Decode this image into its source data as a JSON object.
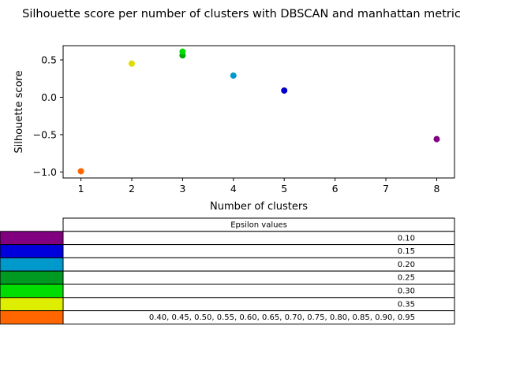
{
  "chart_data": {
    "type": "scatter",
    "title": "Silhouette score per number of clusters with DBSCAN and manhattan metric",
    "xlabel": "Number of clusters",
    "ylabel": "Silhouette score",
    "xlim": [
      0.65,
      8.35
    ],
    "ylim": [
      -1.08,
      0.69
    ],
    "xticks": [
      1,
      2,
      3,
      4,
      5,
      6,
      7,
      8
    ],
    "yticks": [
      0.5,
      0.0,
      -0.5,
      -1.0
    ],
    "xtick_labels": [
      "1",
      "2",
      "3",
      "4",
      "5",
      "6",
      "7",
      "8"
    ],
    "ytick_labels": [
      "0.5",
      "0.0",
      "−0.5",
      "−1.0"
    ],
    "grid": false,
    "points": [
      {
        "x": 8,
        "y": -0.56,
        "color": "#800080"
      },
      {
        "x": 5,
        "y": 0.09,
        "color": "#0000cc"
      },
      {
        "x": 4,
        "y": 0.29,
        "color": "#0099cc"
      },
      {
        "x": 3,
        "y": 0.56,
        "color": "#00aa00"
      },
      {
        "x": 3,
        "y": 0.61,
        "color": "#00dd00"
      },
      {
        "x": 2,
        "y": 0.45,
        "color": "#dddd00"
      },
      {
        "x": 1,
        "y": -0.99,
        "color": "#ff6600"
      }
    ],
    "table": {
      "header": "Epsilon values",
      "rows": [
        {
          "color": "#800080",
          "value": "0.10"
        },
        {
          "color": "#0000dd",
          "value": "0.15"
        },
        {
          "color": "#0099cc",
          "value": "0.20"
        },
        {
          "color": "#009922",
          "value": "0.25"
        },
        {
          "color": "#00dd00",
          "value": "0.30"
        },
        {
          "color": "#ddee00",
          "value": "0.35"
        },
        {
          "color": "#ff6600",
          "value": "0.40, 0.45, 0.50, 0.55, 0.60, 0.65, 0.70, 0.75, 0.80, 0.85, 0.90, 0.95"
        }
      ]
    }
  }
}
